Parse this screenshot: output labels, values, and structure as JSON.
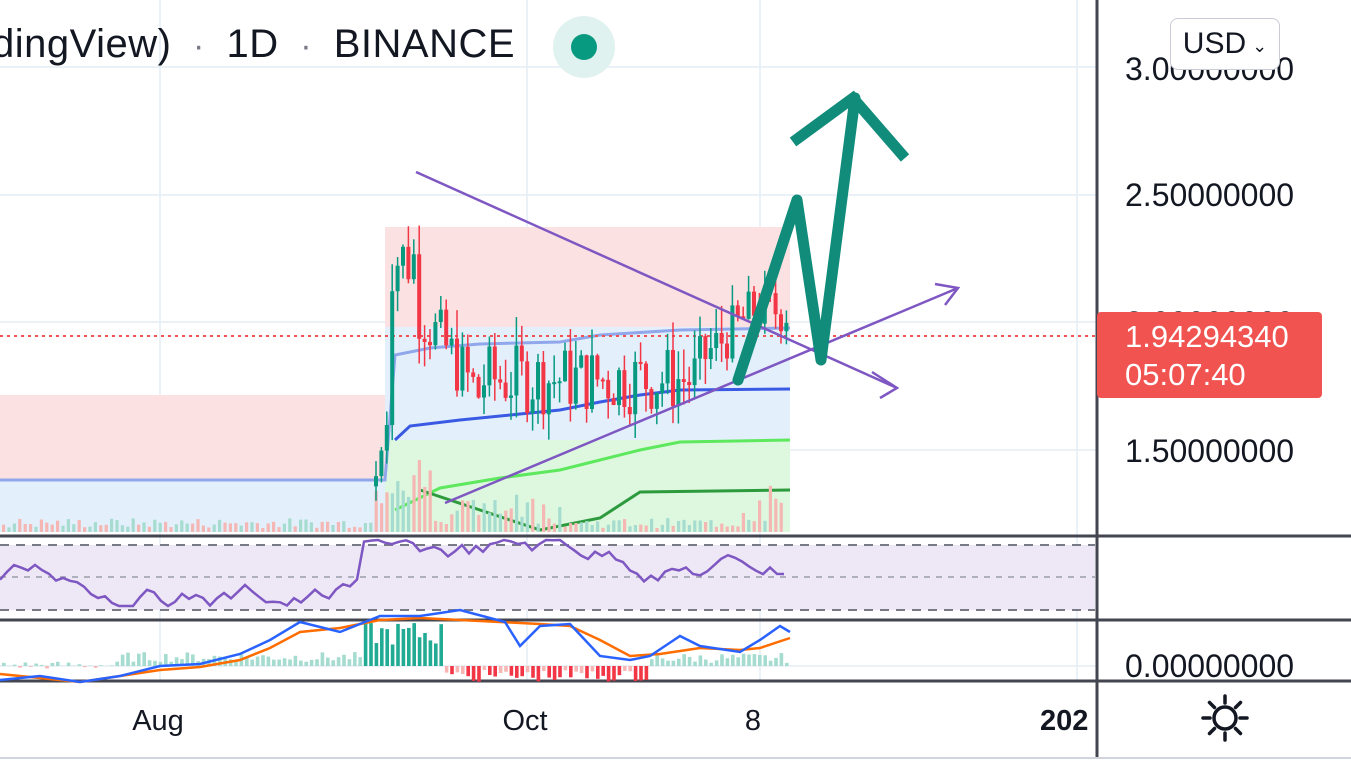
{
  "header": {
    "title_partial": "dingView)",
    "interval": "1D",
    "exchange": "BINANCE",
    "separator": "·"
  },
  "currency": {
    "label": "USD",
    "icon": "chevron-down-icon"
  },
  "last_price": {
    "value": "1.94294340",
    "countdown": "05:07:40",
    "color": "#f05350"
  },
  "colors": {
    "bull": "#089981",
    "bear": "#f23645",
    "rsi": "#7e57c2",
    "macd": "#2962ff",
    "signal": "#ff6d00",
    "arrow": "#118c7b",
    "trendline": "#7e57c2"
  },
  "chart_data": [
    {
      "type": "candlestick",
      "title": "",
      "y_axis_labels": [
        "3.00000000",
        "2.50000000",
        "2.00000000",
        "1.50000000"
      ],
      "x_axis_labels": [
        "Aug",
        "Oct",
        "8",
        "202"
      ],
      "ylim": [
        1.3,
        3.15
      ],
      "last_price": 1.9429434,
      "ohlc_summary": {
        "pre_breakout_range": [
          1.3,
          1.35
        ],
        "breakout_high": 2.55,
        "consolidation_range": [
          1.55,
          2.2
        ],
        "current": 1.9429434
      },
      "annotations": {
        "descending_trendline": [
          [
            2.55,
            1.72
          ]
        ],
        "ascending_trendline": [
          [
            1.35,
            2.1
          ]
        ],
        "projection_arrow": "zigzag upward toward ~2.9",
        "fixed_range_volume_profile": true
      }
    },
    {
      "type": "line",
      "name": "RSI",
      "bands": [
        70,
        50,
        30
      ],
      "ylim": [
        0,
        100
      ]
    },
    {
      "type": "bar",
      "name": "MACD",
      "y_axis_labels": [
        "0.00000000"
      ],
      "series": [
        "macd-line",
        "signal-line",
        "histogram"
      ]
    }
  ]
}
